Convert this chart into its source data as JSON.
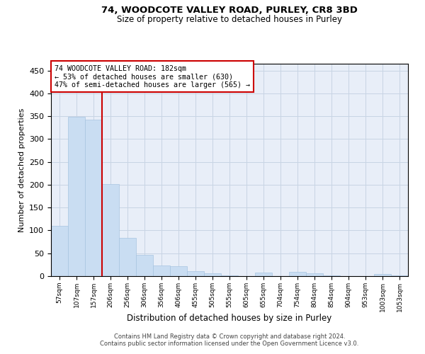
{
  "title1": "74, WOODCOTE VALLEY ROAD, PURLEY, CR8 3BD",
  "title2": "Size of property relative to detached houses in Purley",
  "xlabel": "Distribution of detached houses by size in Purley",
  "ylabel": "Number of detached properties",
  "footnote1": "Contains HM Land Registry data © Crown copyright and database right 2024.",
  "footnote2": "Contains public sector information licensed under the Open Government Licence v3.0.",
  "bar_color": "#c9ddf2",
  "bar_edge_color": "#a8c4e0",
  "annotation_box_color": "#cc0000",
  "annotation_line_color": "#cc0000",
  "grid_color": "#c8d4e4",
  "bg_color": "#e8eef8",
  "categories": [
    "57sqm",
    "107sqm",
    "157sqm",
    "206sqm",
    "256sqm",
    "306sqm",
    "356sqm",
    "406sqm",
    "455sqm",
    "505sqm",
    "555sqm",
    "605sqm",
    "655sqm",
    "704sqm",
    "754sqm",
    "804sqm",
    "854sqm",
    "904sqm",
    "953sqm",
    "1003sqm",
    "1053sqm"
  ],
  "values": [
    110,
    348,
    342,
    202,
    84,
    46,
    23,
    21,
    11,
    6,
    1,
    0,
    7,
    0,
    9,
    6,
    2,
    0,
    0,
    4,
    2
  ],
  "ylim": [
    0,
    465
  ],
  "yticks": [
    0,
    50,
    100,
    150,
    200,
    250,
    300,
    350,
    400,
    450
  ],
  "vline_x_index": 2.5,
  "annotation_text_line1": "74 WOODCOTE VALLEY ROAD: 182sqm",
  "annotation_text_line2": "← 53% of detached houses are smaller (630)",
  "annotation_text_line3": "47% of semi-detached houses are larger (565) →"
}
